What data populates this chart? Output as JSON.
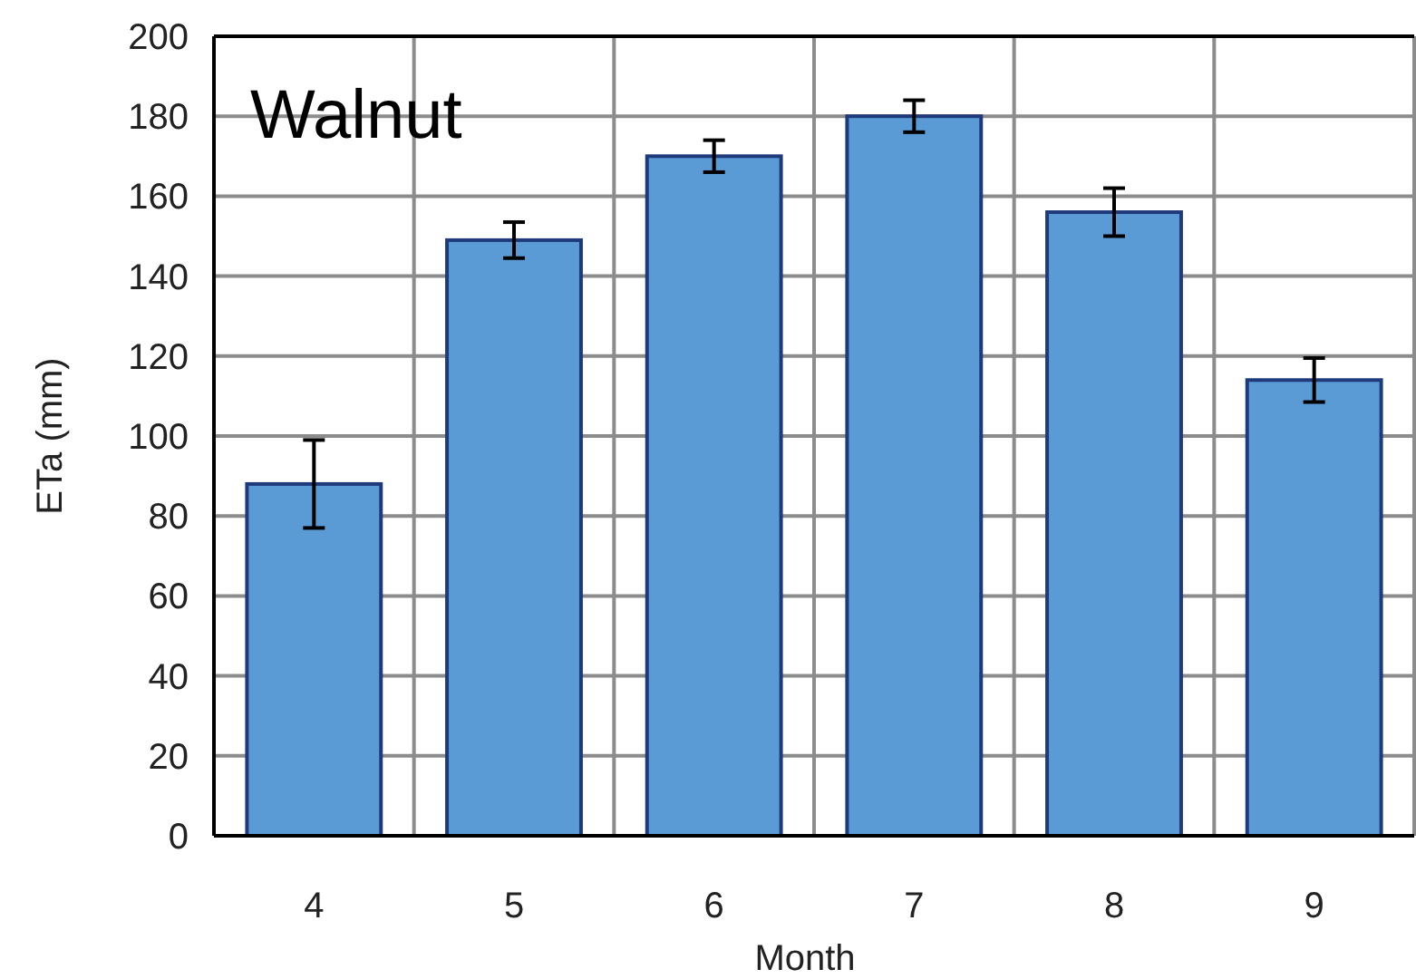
{
  "chart_data": {
    "type": "bar",
    "title": "Walnut",
    "xlabel": "Month",
    "ylabel": "ETa (mm)",
    "categories": [
      "4",
      "5",
      "6",
      "7",
      "8",
      "9"
    ],
    "values": [
      88,
      149,
      170,
      180,
      156,
      114
    ],
    "errors": [
      11,
      4.5,
      4,
      4,
      6,
      5.5
    ],
    "color": "#5b9bd5",
    "ylim": [
      0,
      200
    ],
    "yticks": [
      0,
      20,
      40,
      60,
      80,
      100,
      120,
      140,
      160,
      180,
      200
    ],
    "grid": true
  }
}
